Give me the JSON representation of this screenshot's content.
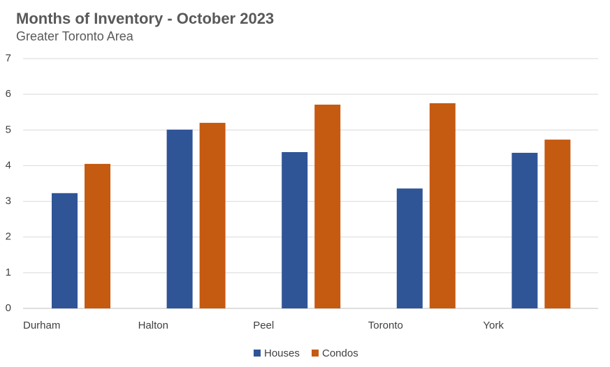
{
  "chart_data": {
    "type": "bar",
    "title": "Months of Inventory - October 2023",
    "subtitle": "Greater Toronto Area",
    "categories": [
      "Durham",
      "Halton",
      "Peel",
      "Toronto",
      "York"
    ],
    "series": [
      {
        "name": "Houses",
        "color": "#2f5597",
        "values": [
          3.23,
          5.01,
          4.38,
          3.36,
          4.36
        ]
      },
      {
        "name": "Condos",
        "color": "#c55a11",
        "values": [
          4.05,
          5.2,
          5.71,
          5.75,
          4.73
        ]
      }
    ],
    "ylim": [
      0,
      7
    ],
    "yticks": [
      0,
      1,
      2,
      3,
      4,
      5,
      6,
      7
    ],
    "grid": true,
    "legend": "bottom"
  }
}
